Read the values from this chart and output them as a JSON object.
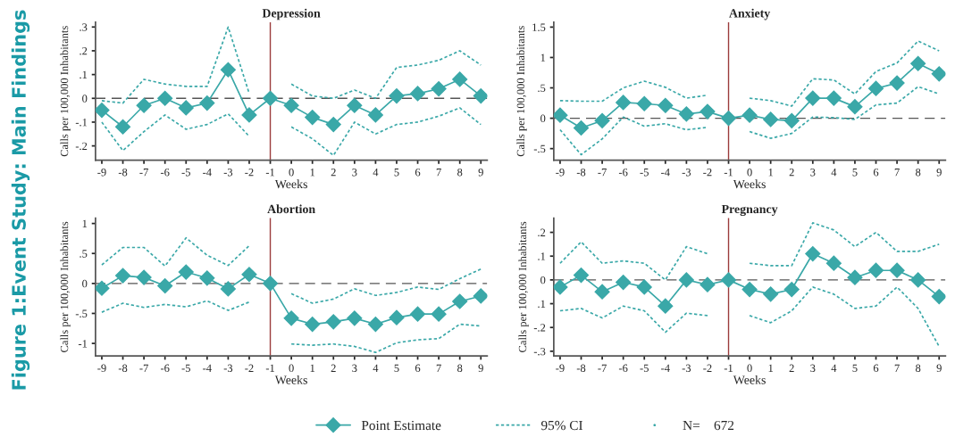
{
  "chart_data": [
    {
      "type": "line",
      "title": "Depression",
      "xlabel": "Weeks",
      "ylabel": "Calls per 100,000 Inhabitants",
      "legend": "bottom",
      "grid": false,
      "annotations": [
        "Figure 1:Event Study: Main Findings",
        "N=    672"
      ],
      "x": [
        -9,
        -8,
        -7,
        -6,
        -5,
        -4,
        -3,
        -2,
        -1,
        0,
        1,
        2,
        3,
        4,
        5,
        6,
        7,
        8,
        9
      ],
      "xlim": [
        -9.3,
        9.3
      ],
      "xticks": [
        -9,
        -8,
        -7,
        -6,
        -5,
        -4,
        -3,
        -2,
        -1,
        0,
        1,
        2,
        3,
        4,
        5,
        6,
        7,
        8,
        9
      ],
      "ylim": [
        -0.26,
        0.32
      ],
      "yticks": [
        {
          "value": -0.2,
          "label": "-.2"
        },
        {
          "value": -0.1,
          "label": "-.1"
        },
        0,
        {
          "value": 0.1,
          "label": ".1"
        },
        {
          "value": 0.2,
          "label": ".2"
        },
        {
          "value": 0.3,
          "label": ".3"
        }
      ],
      "ref_lines": [
        {
          "axis": "x",
          "value": -1,
          "color": "#9b3b3b",
          "line_style": "solid"
        },
        {
          "axis": "y",
          "value": 0,
          "color": "#555555",
          "line_style": "dashed"
        }
      ],
      "series": [
        {
          "name": "Point Estimate",
          "marker": "diamond",
          "line_style": "solid",
          "color": "#3aa8a8",
          "values": [
            -0.05,
            -0.12,
            -0.03,
            0,
            -0.04,
            -0.02,
            0.12,
            -0.07,
            0,
            -0.03,
            -0.08,
            -0.11,
            -0.03,
            -0.07,
            0.01,
            0.02,
            0.04,
            0.08,
            0.01
          ]
        },
        {
          "name": "95% CI",
          "marker": "none",
          "line_style": "dashed",
          "color": "#3aa8a8",
          "values": [
            -0.01,
            -0.02,
            0.08,
            0.06,
            0.05,
            0.05,
            0.3,
            0.02,
            null,
            0.06,
            0.01,
            0.0,
            0.035,
            0.0,
            0.13,
            0.14,
            0.16,
            0.2,
            0.14
          ]
        },
        {
          "marker": "none",
          "line_style": "dashed",
          "color": "#3aa8a8",
          "values": [
            -0.1,
            -0.22,
            -0.14,
            -0.07,
            -0.13,
            -0.11,
            -0.065,
            -0.16,
            null,
            -0.12,
            -0.17,
            -0.24,
            -0.1,
            -0.15,
            -0.11,
            -0.1,
            -0.075,
            -0.04,
            -0.11
          ]
        }
      ]
    },
    {
      "type": "line",
      "title": "Anxiety",
      "xlabel": "Weeks",
      "ylabel": "Calls per 100,000 Inhabitants",
      "grid": false,
      "x": [
        -9,
        -8,
        -7,
        -6,
        -5,
        -4,
        -3,
        -2,
        -1,
        0,
        1,
        2,
        3,
        4,
        5,
        6,
        7,
        8,
        9
      ],
      "xlim": [
        -9.3,
        9.3
      ],
      "xticks": [
        -9,
        -8,
        -7,
        -6,
        -5,
        -4,
        -3,
        -2,
        -1,
        0,
        1,
        2,
        3,
        4,
        5,
        6,
        7,
        8,
        9
      ],
      "ylim": [
        -0.69,
        1.58
      ],
      "yticks": [
        {
          "value": -0.5,
          "label": "-.5"
        },
        0,
        {
          "value": 0.5,
          "label": ".5"
        },
        1,
        1.5
      ],
      "ref_lines": [
        {
          "axis": "x",
          "value": -1,
          "color": "#9b3b3b",
          "line_style": "solid"
        },
        {
          "axis": "y",
          "value": 0,
          "color": "#555555",
          "line_style": "dashed"
        }
      ],
      "series": [
        {
          "marker": "diamond",
          "line_style": "solid",
          "color": "#3aa8a8",
          "values": [
            0.05,
            -0.16,
            -0.04,
            0.26,
            0.24,
            0.21,
            0.07,
            0.11,
            0,
            0.05,
            -0.02,
            -0.04,
            0.33,
            0.33,
            0.19,
            0.49,
            0.58,
            0.9,
            0.73
          ]
        },
        {
          "marker": "none",
          "line_style": "dashed",
          "color": "#3aa8a8",
          "values": [
            0.29,
            0.28,
            0.28,
            0.5,
            0.61,
            0.51,
            0.33,
            0.38,
            null,
            0.33,
            0.29,
            0.2,
            0.65,
            0.63,
            0.4,
            0.77,
            0.91,
            1.27,
            1.11
          ]
        },
        {
          "marker": "none",
          "line_style": "dashed",
          "color": "#3aa8a8",
          "values": [
            -0.19,
            -0.6,
            -0.34,
            0.02,
            -0.13,
            -0.09,
            -0.19,
            -0.15,
            null,
            -0.22,
            -0.33,
            -0.25,
            0.02,
            0.01,
            -0.02,
            0.22,
            0.25,
            0.52,
            0.4
          ]
        }
      ]
    },
    {
      "type": "line",
      "title": "Abortion",
      "xlabel": "Weeks",
      "ylabel": "Calls per 100,000 Inhabitants",
      "grid": false,
      "x": [
        -9,
        -8,
        -7,
        -6,
        -5,
        -4,
        -3,
        -2,
        -1,
        0,
        1,
        2,
        3,
        4,
        5,
        6,
        7,
        8,
        9
      ],
      "xlim": [
        -9.3,
        9.3
      ],
      "xticks": [
        -9,
        -8,
        -7,
        -6,
        -5,
        -4,
        -3,
        -2,
        -1,
        0,
        1,
        2,
        3,
        4,
        5,
        6,
        7,
        8,
        9
      ],
      "ylim": [
        -1.21,
        1.09
      ],
      "yticks": [
        -1,
        {
          "value": -0.5,
          "label": "-.5"
        },
        0,
        {
          "value": 0.5,
          "label": ".5"
        },
        1
      ],
      "ref_lines": [
        {
          "axis": "x",
          "value": -1,
          "color": "#9b3b3b",
          "line_style": "solid"
        },
        {
          "axis": "y",
          "value": 0,
          "color": "#555555",
          "line_style": "dashed"
        }
      ],
      "series": [
        {
          "marker": "diamond",
          "line_style": "solid",
          "color": "#3aa8a8",
          "values": [
            -0.08,
            0.13,
            0.1,
            -0.04,
            0.19,
            0.09,
            -0.09,
            0.15,
            0,
            -0.58,
            -0.68,
            -0.64,
            -0.58,
            -0.68,
            -0.57,
            -0.51,
            -0.51,
            -0.3,
            -0.21
          ]
        },
        {
          "marker": "none",
          "line_style": "dashed",
          "color": "#3aa8a8",
          "values": [
            0.31,
            0.6,
            0.6,
            0.29,
            0.76,
            0.47,
            0.3,
            0.63,
            null,
            -0.17,
            -0.33,
            -0.26,
            -0.09,
            -0.2,
            -0.15,
            -0.06,
            -0.1,
            0.08,
            0.24
          ]
        },
        {
          "marker": "none",
          "line_style": "dashed",
          "color": "#3aa8a8",
          "values": [
            -0.48,
            -0.33,
            -0.4,
            -0.35,
            -0.39,
            -0.29,
            -0.45,
            -0.31,
            null,
            -1.01,
            -1.03,
            -1.01,
            -1.05,
            -1.15,
            -0.99,
            -0.94,
            -0.92,
            -0.68,
            -0.71
          ]
        }
      ]
    },
    {
      "type": "line",
      "title": "Pregnancy",
      "xlabel": "Weeks",
      "ylabel": "Calls per 100,000 Inhabitants",
      "grid": false,
      "x": [
        -9,
        -8,
        -7,
        -6,
        -5,
        -4,
        -3,
        -2,
        -1,
        0,
        1,
        2,
        3,
        4,
        5,
        6,
        7,
        8,
        9
      ],
      "xlim": [
        -9.3,
        9.3
      ],
      "xticks": [
        -9,
        -8,
        -7,
        -6,
        -5,
        -4,
        -3,
        -2,
        -1,
        0,
        1,
        2,
        3,
        4,
        5,
        6,
        7,
        8,
        9
      ],
      "ylim": [
        -0.32,
        0.26
      ],
      "yticks": [
        {
          "value": -0.3,
          "label": "-.3"
        },
        {
          "value": -0.2,
          "label": "-.2"
        },
        {
          "value": -0.1,
          "label": ".1"
        },
        0,
        {
          "value": 0.1,
          "label": ".1"
        },
        {
          "value": 0.2,
          "label": ".2"
        }
      ],
      "ref_lines": [
        {
          "axis": "x",
          "value": -1,
          "color": "#9b3b3b",
          "line_style": "solid"
        },
        {
          "axis": "y",
          "value": 0,
          "color": "#555555",
          "line_style": "dashed"
        }
      ],
      "series": [
        {
          "marker": "diamond",
          "line_style": "solid",
          "color": "#3aa8a8",
          "values": [
            -0.03,
            0.02,
            -0.05,
            -0.01,
            -0.03,
            -0.11,
            0.0,
            -0.02,
            0,
            -0.04,
            -0.06,
            -0.04,
            0.11,
            0.07,
            0.01,
            0.04,
            0.04,
            0.0,
            -0.07
          ]
        },
        {
          "marker": "none",
          "line_style": "dashed",
          "color": "#3aa8a8",
          "values": [
            0.07,
            0.16,
            0.07,
            0.08,
            0.07,
            0.0,
            0.14,
            0.11,
            null,
            0.07,
            0.06,
            0.06,
            0.24,
            0.21,
            0.14,
            0.2,
            0.12,
            0.12,
            0.15
          ]
        },
        {
          "marker": "none",
          "line_style": "dashed",
          "color": "#3aa8a8",
          "values": [
            -0.13,
            -0.12,
            -0.16,
            -0.11,
            -0.13,
            -0.22,
            -0.14,
            -0.15,
            null,
            -0.15,
            -0.18,
            -0.13,
            -0.03,
            -0.06,
            -0.12,
            -0.11,
            -0.03,
            -0.12,
            -0.28
          ]
        }
      ]
    }
  ]
}
